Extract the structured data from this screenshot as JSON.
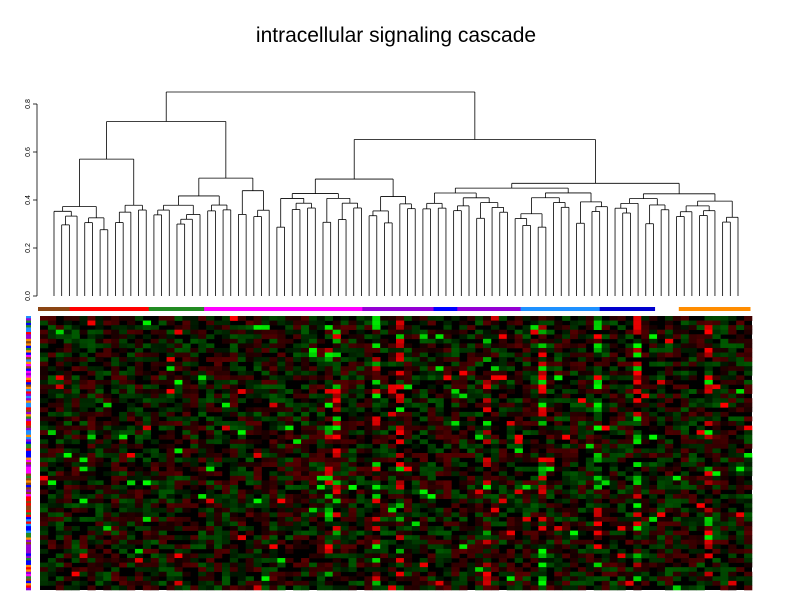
{
  "chart_data": {
    "type": "heatmap",
    "title": "intracellular signaling cascade",
    "dendrogram": {
      "leaf_count": 90,
      "yaxis_ticks": [
        "0.0",
        "0.2",
        "0.4",
        "0.6",
        "0.8"
      ],
      "ylim": [
        0,
        0.85
      ]
    },
    "column_groups": [
      {
        "color": "#8b4513",
        "count": 4
      },
      {
        "color": "#ff0000",
        "count": 10
      },
      {
        "color": "#228b22",
        "count": 7
      },
      {
        "color": "#ff00ff",
        "count": 20
      },
      {
        "color": "#9400d3",
        "count": 9
      },
      {
        "color": "#0000ff",
        "count": 3
      },
      {
        "color": "#9400d3",
        "count": 8
      },
      {
        "color": "#1e90ff",
        "count": 10
      },
      {
        "color": "#0000cd",
        "count": 7
      },
      {
        "color": "#ffffff",
        "count": 3
      },
      {
        "color": "#ff8c00",
        "count": 9
      }
    ],
    "heatmap": {
      "rows": 60,
      "cols": 90,
      "color_low": "#00ff00",
      "color_mid": "#000000",
      "color_high": "#ff0000"
    },
    "row_bar_colors": [
      "#ff00ff",
      "#1e90ff",
      "#8b4513",
      "#228b22",
      "#0000ff",
      "#ff8c00",
      "#ff0000",
      "#9400d3"
    ]
  }
}
